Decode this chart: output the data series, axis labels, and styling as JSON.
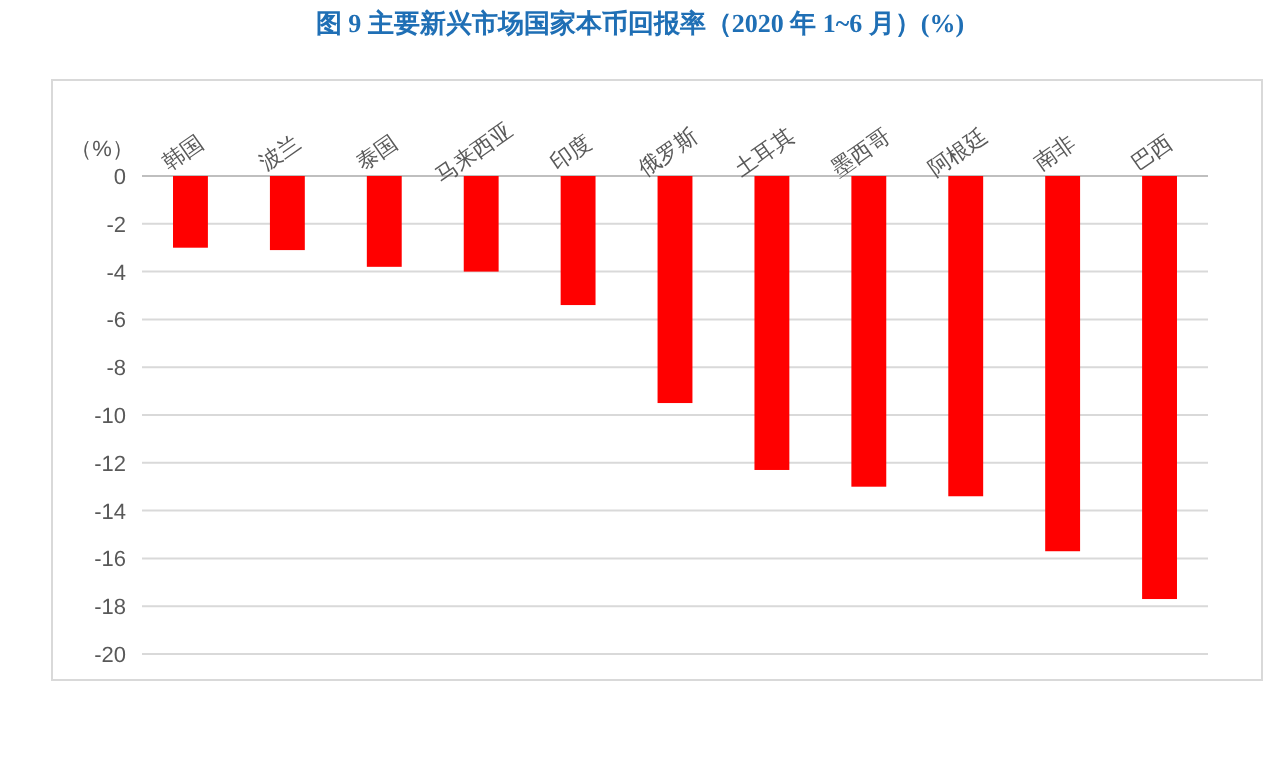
{
  "chart_data": {
    "type": "bar",
    "title": "图 9  主要新兴市场国家本币回报率（2020 年 1~6 月）(%)",
    "ylabel": "（%）",
    "categories": [
      "韩国",
      "波兰",
      "泰国",
      "马来西亚",
      "印度",
      "俄罗斯",
      "土耳其",
      "墨西哥",
      "阿根廷",
      "南非",
      "巴西"
    ],
    "values": [
      -3.0,
      -3.1,
      -3.8,
      -4.0,
      -5.4,
      -9.5,
      -12.3,
      -13.0,
      -13.4,
      -15.7,
      -17.7
    ],
    "color": "#ff0000",
    "ylim": [
      -20,
      0
    ],
    "yticks": [
      -20,
      -18,
      -16,
      -14,
      -12,
      -10,
      -8,
      -6,
      -4,
      -2,
      0
    ],
    "grid": "y"
  }
}
